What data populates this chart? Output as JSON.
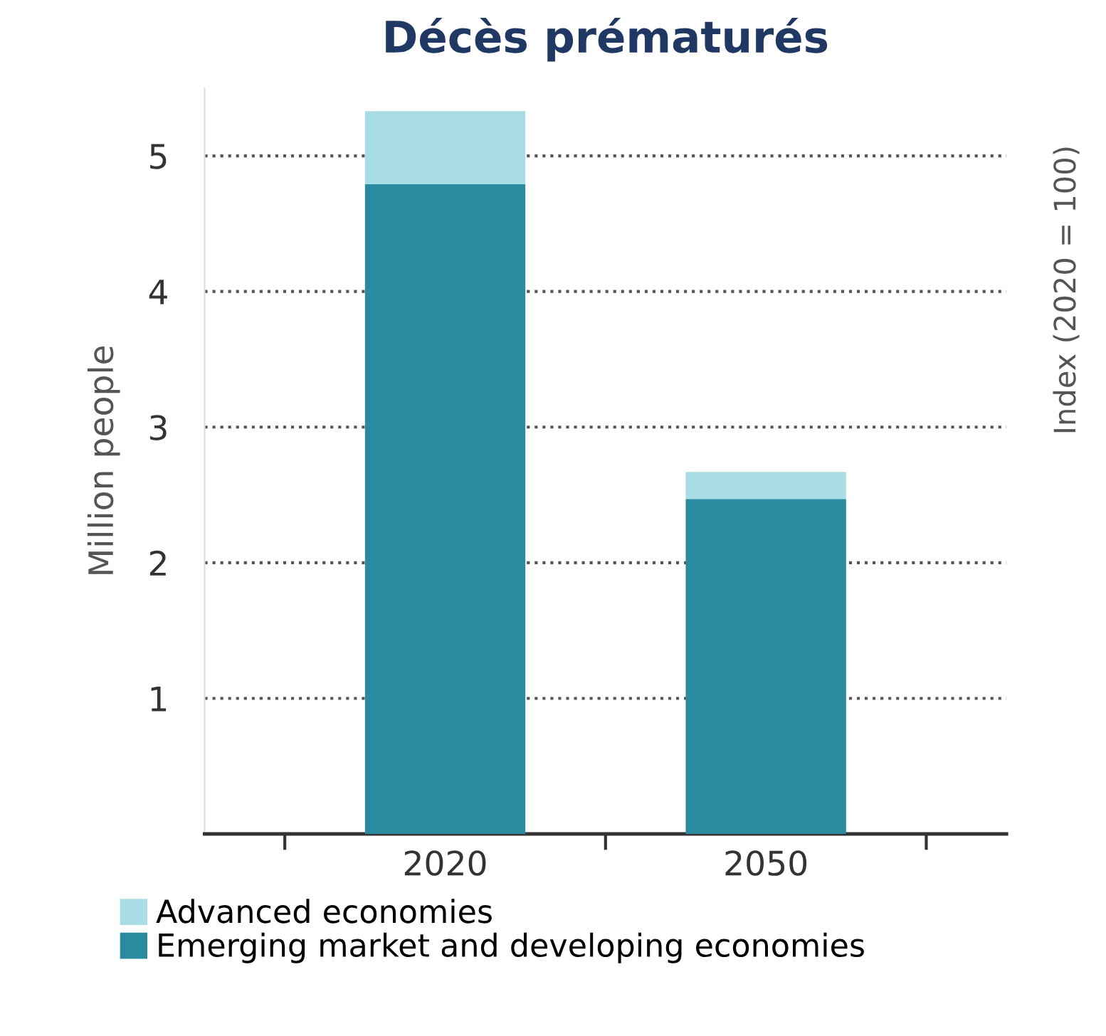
{
  "chart_data": {
    "type": "bar",
    "title": "Décès prématurés",
    "ylabel": "Million people",
    "categories": [
      "2020",
      "2050"
    ],
    "stacked": true,
    "series": [
      {
        "name": "Emerging market and developing economies",
        "color": "#2a8aa0",
        "values": [
          4.79,
          2.47
        ]
      },
      {
        "name": "Advanced economies",
        "color": "#a8dde6",
        "values": [
          0.54,
          0.2
        ]
      }
    ],
    "ylim": [
      0,
      5.5
    ],
    "yticks": [
      {
        "value": 0,
        "label": null
      },
      1,
      2,
      3,
      4,
      5
    ],
    "grid": "y",
    "legend": "bottom",
    "annotations": [
      "Index (2020 = 100)"
    ]
  }
}
